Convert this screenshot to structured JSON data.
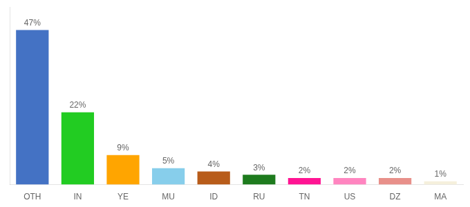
{
  "chart_data": {
    "type": "bar",
    "categories": [
      "OTH",
      "IN",
      "YE",
      "MU",
      "ID",
      "RU",
      "TN",
      "US",
      "DZ",
      "MA"
    ],
    "values": [
      47,
      22,
      9,
      5,
      4,
      3,
      2,
      2,
      2,
      1
    ],
    "value_labels": [
      "47%",
      "22%",
      "9%",
      "5%",
      "4%",
      "3%",
      "2%",
      "2%",
      "2%",
      "1%"
    ],
    "colors": [
      "#4472C4",
      "#22CC22",
      "#FFA500",
      "#87CEEB",
      "#B85C1A",
      "#1E7B1E",
      "#FF1493",
      "#FF85C0",
      "#E8908A",
      "#F5F0DC"
    ],
    "ylim": [
      0,
      54
    ],
    "grid": false,
    "tick_labels": "x",
    "data_labels": true
  }
}
